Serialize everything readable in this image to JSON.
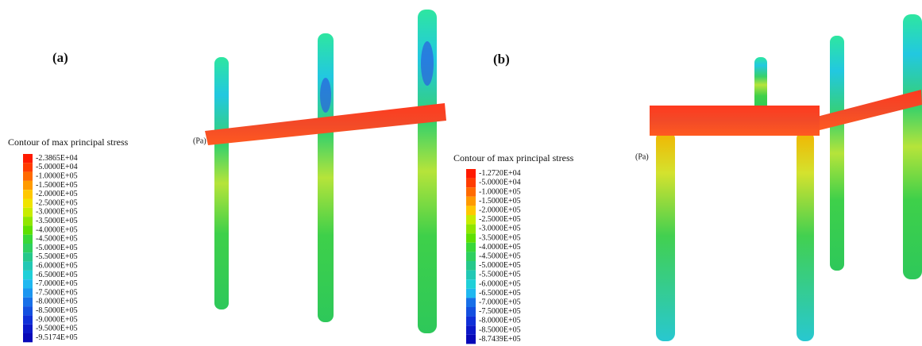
{
  "panels": [
    {
      "label": "(a)",
      "legend": {
        "title": "Contour of max principal stress",
        "unit": "(Pa)",
        "levels": [
          "-2.3865E+04",
          "-5.0000E+04",
          "-1.0000E+05",
          "-1.5000E+05",
          "-2.0000E+05",
          "-2.5000E+05",
          "-3.0000E+05",
          "-3.5000E+05",
          "-4.0000E+05",
          "-4.5000E+05",
          "-5.0000E+05",
          "-5.5000E+05",
          "-6.0000E+05",
          "-6.5000E+05",
          "-7.0000E+05",
          "-7.5000E+05",
          "-8.0000E+05",
          "-8.5000E+05",
          "-9.0000E+05",
          "-9.5000E+05",
          "-9.5174E+05"
        ]
      }
    },
    {
      "label": "(b)",
      "legend": {
        "title": "Contour of max principal stress",
        "unit": "(Pa)",
        "levels": [
          "-1.2720E+04",
          "-5.0000E+04",
          "-1.0000E+05",
          "-1.5000E+05",
          "-2.0000E+05",
          "-2.5000E+05",
          "-3.0000E+05",
          "-3.5000E+05",
          "-4.0000E+05",
          "-4.5000E+05",
          "-5.0000E+05",
          "-5.5000E+05",
          "-6.0000E+05",
          "-6.5000E+05",
          "-7.0000E+05",
          "-7.5000E+05",
          "-8.0000E+05",
          "-8.5000E+05",
          "-8.7439E+05"
        ]
      }
    }
  ]
}
